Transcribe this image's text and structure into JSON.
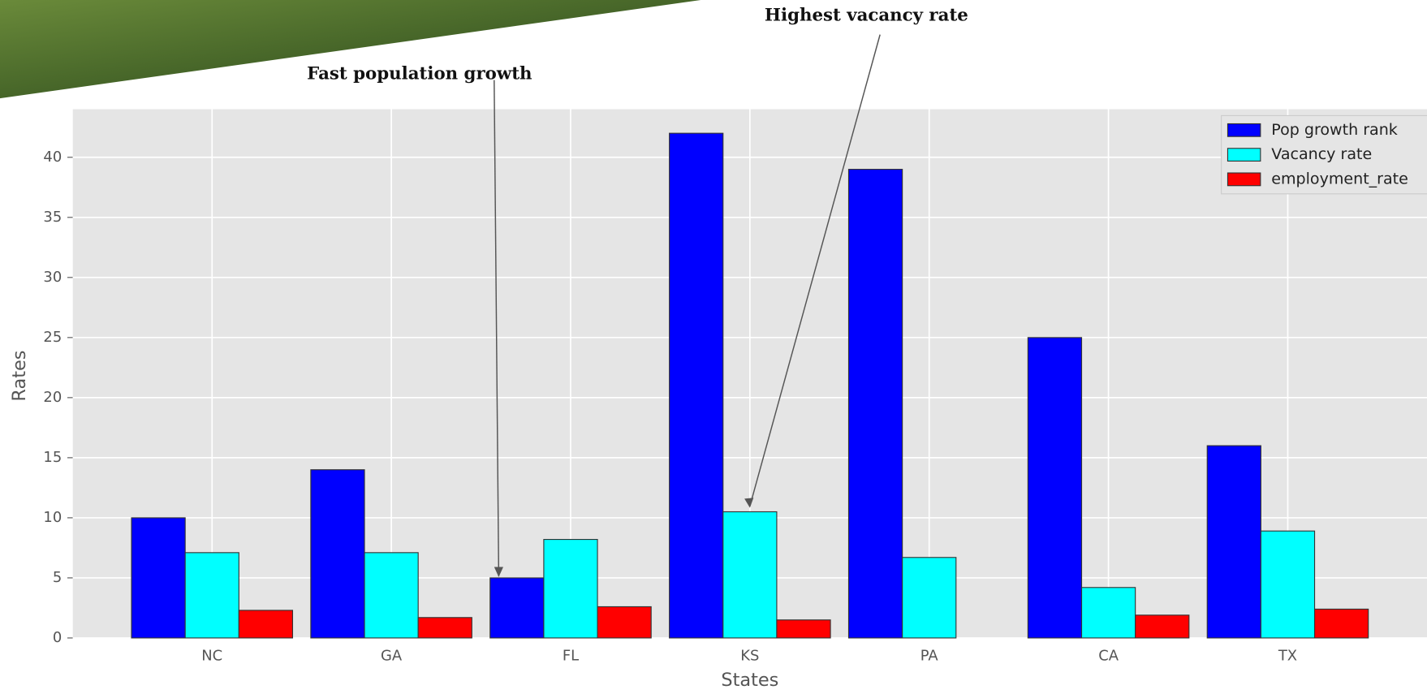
{
  "chart_data": {
    "type": "bar",
    "x_label": "States",
    "y_label": "Rates",
    "categories": [
      "NC",
      "GA",
      "FL",
      "KS",
      "PA",
      "CA",
      "TX"
    ],
    "series": [
      {
        "name": "Pop growth rank",
        "color": "#0000ff",
        "values": [
          10,
          14,
          5,
          42,
          39,
          25,
          16
        ]
      },
      {
        "name": "Vacancy rate",
        "color": "#00ffff",
        "values": [
          7.1,
          7.1,
          8.2,
          10.5,
          6.7,
          4.2,
          8.9
        ]
      },
      {
        "name": "employment_rate",
        "color": "#ff0000",
        "values": [
          2.3,
          1.7,
          2.6,
          1.5,
          null,
          1.9,
          2.4
        ]
      }
    ],
    "ylim": [
      0,
      44
    ],
    "yticks": [
      0,
      5,
      10,
      15,
      20,
      25,
      30,
      35,
      40
    ],
    "grid": true,
    "legend": "upper right",
    "annotations": [
      "Fast population growth",
      "Highest vacancy rate"
    ]
  }
}
